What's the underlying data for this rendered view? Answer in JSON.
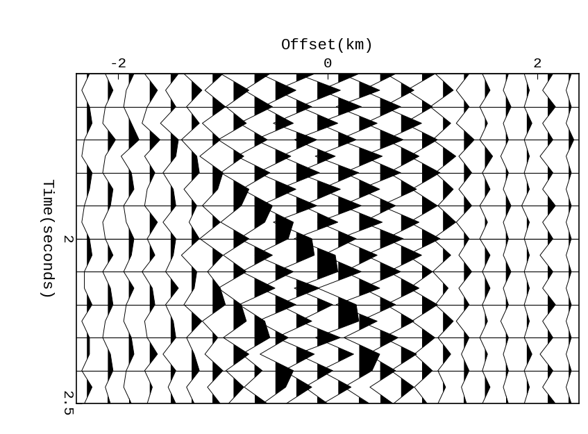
{
  "chart_data": {
    "type": "wiggle",
    "xlabel": "Offset(km)",
    "ylabel": "Time(seconds)",
    "xlim": [
      -2.4,
      2.4
    ],
    "xticks": [
      -2,
      0,
      2
    ],
    "ylim": [
      2.5,
      1.5
    ],
    "yticks": [
      2,
      2.5
    ],
    "grid": true,
    "color": "#000000",
    "time": [
      1.5,
      1.55,
      1.6,
      1.65,
      1.7,
      1.75,
      1.8,
      1.85,
      1.9,
      1.95,
      2.0,
      2.05,
      2.1,
      2.15,
      2.2,
      2.25,
      2.3,
      2.35,
      2.4,
      2.45,
      2.5
    ],
    "offsets": [
      -2.3,
      -2.1,
      -1.9,
      -1.7,
      -1.5,
      -1.3,
      -1.1,
      -0.9,
      -0.7,
      -0.5,
      -0.3,
      -0.1,
      0.1,
      0.3,
      0.5,
      0.7,
      0.9,
      1.1,
      1.3,
      1.5,
      1.7,
      1.9,
      2.1,
      2.3
    ],
    "amplitudes": [
      [
        1,
        -2,
        1,
        2,
        -1,
        -2,
        2,
        1,
        -1,
        -2,
        1,
        2,
        -1,
        -1,
        2,
        -2,
        1,
        1,
        -2,
        2,
        -1
      ],
      [
        -1,
        2,
        -1,
        -2,
        3,
        -1,
        -2,
        2,
        1,
        -2,
        -1,
        2,
        -2,
        1,
        2,
        -1,
        -2,
        1,
        2,
        -1,
        1
      ],
      [
        2,
        -1,
        -2,
        1,
        4,
        -3,
        1,
        2,
        -2,
        -1,
        2,
        1,
        -2,
        2,
        -1,
        -2,
        1,
        2,
        -1,
        -2,
        1
      ],
      [
        -2,
        3,
        -1,
        -3,
        4,
        -2,
        2,
        -1,
        -2,
        3,
        -1,
        2,
        -3,
        1,
        2,
        -2,
        -1,
        3,
        -2,
        1,
        -1
      ],
      [
        3,
        -2,
        2,
        -4,
        3,
        2,
        -3,
        1,
        2,
        -3,
        2,
        1,
        -2,
        3,
        -2,
        1,
        2,
        -3,
        2,
        -1,
        2
      ],
      [
        -3,
        4,
        -2,
        3,
        -4,
        2,
        3,
        -3,
        2,
        -1,
        3,
        -4,
        2,
        1,
        -3,
        4,
        -2,
        1,
        3,
        -2,
        1
      ],
      [
        4,
        -3,
        5,
        -4,
        3,
        -5,
        4,
        2,
        -4,
        3,
        -5,
        4,
        -2,
        3,
        5,
        -4,
        2,
        -3,
        4,
        -2,
        3
      ],
      [
        -5,
        6,
        -3,
        5,
        -6,
        4,
        -5,
        6,
        3,
        -5,
        6,
        -4,
        5,
        -6,
        3,
        5,
        -4,
        6,
        -3,
        4,
        -2
      ],
      [
        6,
        -4,
        7,
        -6,
        5,
        -7,
        6,
        -5,
        7,
        4,
        -6,
        7,
        -5,
        8,
        -6,
        4,
        6,
        -5,
        3,
        -4,
        5
      ],
      [
        -6,
        8,
        -5,
        7,
        -8,
        6,
        -7,
        8,
        -6,
        7,
        5,
        -8,
        7,
        -6,
        8,
        -7,
        5,
        -6,
        7,
        4,
        -5
      ],
      [
        7,
        -8,
        6,
        -9,
        8,
        -6,
        9,
        -7,
        8,
        -9,
        6,
        7,
        -8,
        9,
        -7,
        6,
        -8,
        7,
        -5,
        6,
        -4
      ],
      [
        -8,
        9,
        -7,
        8,
        -9,
        7,
        -8,
        9,
        -6,
        8,
        -9,
        7,
        8,
        -9,
        6,
        -7,
        9,
        -8,
        6,
        -5,
        4
      ],
      [
        8,
        -7,
        9,
        -8,
        7,
        -9,
        8,
        -7,
        9,
        -8,
        7,
        -6,
        9,
        -8,
        7,
        8,
        -9,
        6,
        -7,
        5,
        -6
      ],
      [
        -7,
        8,
        -9,
        7,
        -8,
        9,
        -6,
        8,
        -7,
        9,
        -8,
        7,
        -6,
        8,
        -9,
        7,
        -6,
        8,
        5,
        -6,
        4
      ],
      [
        6,
        -7,
        8,
        -6,
        9,
        -7,
        8,
        -8,
        6,
        -7,
        9,
        -6,
        8,
        -7,
        6,
        -8,
        7,
        -5,
        6,
        -4,
        5
      ],
      [
        -6,
        5,
        -7,
        8,
        -6,
        7,
        -5,
        6,
        -8,
        7,
        -6,
        8,
        -5,
        7,
        -6,
        5,
        -7,
        6,
        -4,
        5,
        -3
      ],
      [
        5,
        -6,
        4,
        -7,
        6,
        -5,
        7,
        -4,
        6,
        -5,
        7,
        -6,
        4,
        -5,
        6,
        -4,
        5,
        -3,
        4,
        -3,
        2
      ],
      [
        -3,
        4,
        -5,
        3,
        -4,
        5,
        -3,
        4,
        -2,
        5,
        -4,
        3,
        -4,
        2,
        -3,
        4,
        -2,
        3,
        -2,
        1,
        -2
      ],
      [
        2,
        -3,
        2,
        -3,
        4,
        -2,
        3,
        -2,
        3,
        -3,
        2,
        -2,
        3,
        -2,
        2,
        -3,
        2,
        -1,
        2,
        -1,
        1
      ],
      [
        -1,
        2,
        -2,
        1,
        -2,
        3,
        -1,
        2,
        -2,
        1,
        -2,
        2,
        -1,
        2,
        -1,
        1,
        -2,
        1,
        -1,
        2,
        -1
      ],
      [
        1,
        -1,
        2,
        -1,
        1,
        -2,
        1,
        -1,
        2,
        -1,
        1,
        -1,
        2,
        -1,
        1,
        -2,
        1,
        -1,
        1,
        -1,
        1
      ],
      [
        -1,
        1,
        -1,
        2,
        -1,
        1,
        -1,
        1,
        -2,
        1,
        -1,
        1,
        -1,
        1,
        -1,
        1,
        -1,
        2,
        -1,
        1,
        -1
      ],
      [
        2,
        -2,
        3,
        -2,
        2,
        -3,
        2,
        -2,
        3,
        -2,
        2,
        -3,
        2,
        -2,
        3,
        -2,
        2,
        -3,
        2,
        -2,
        3
      ],
      [
        1,
        -1,
        1,
        -1,
        2,
        -1,
        1,
        -1,
        1,
        -1,
        1,
        -1,
        1,
        -1,
        1,
        -1,
        1,
        -1,
        1,
        -1,
        1
      ]
    ]
  }
}
